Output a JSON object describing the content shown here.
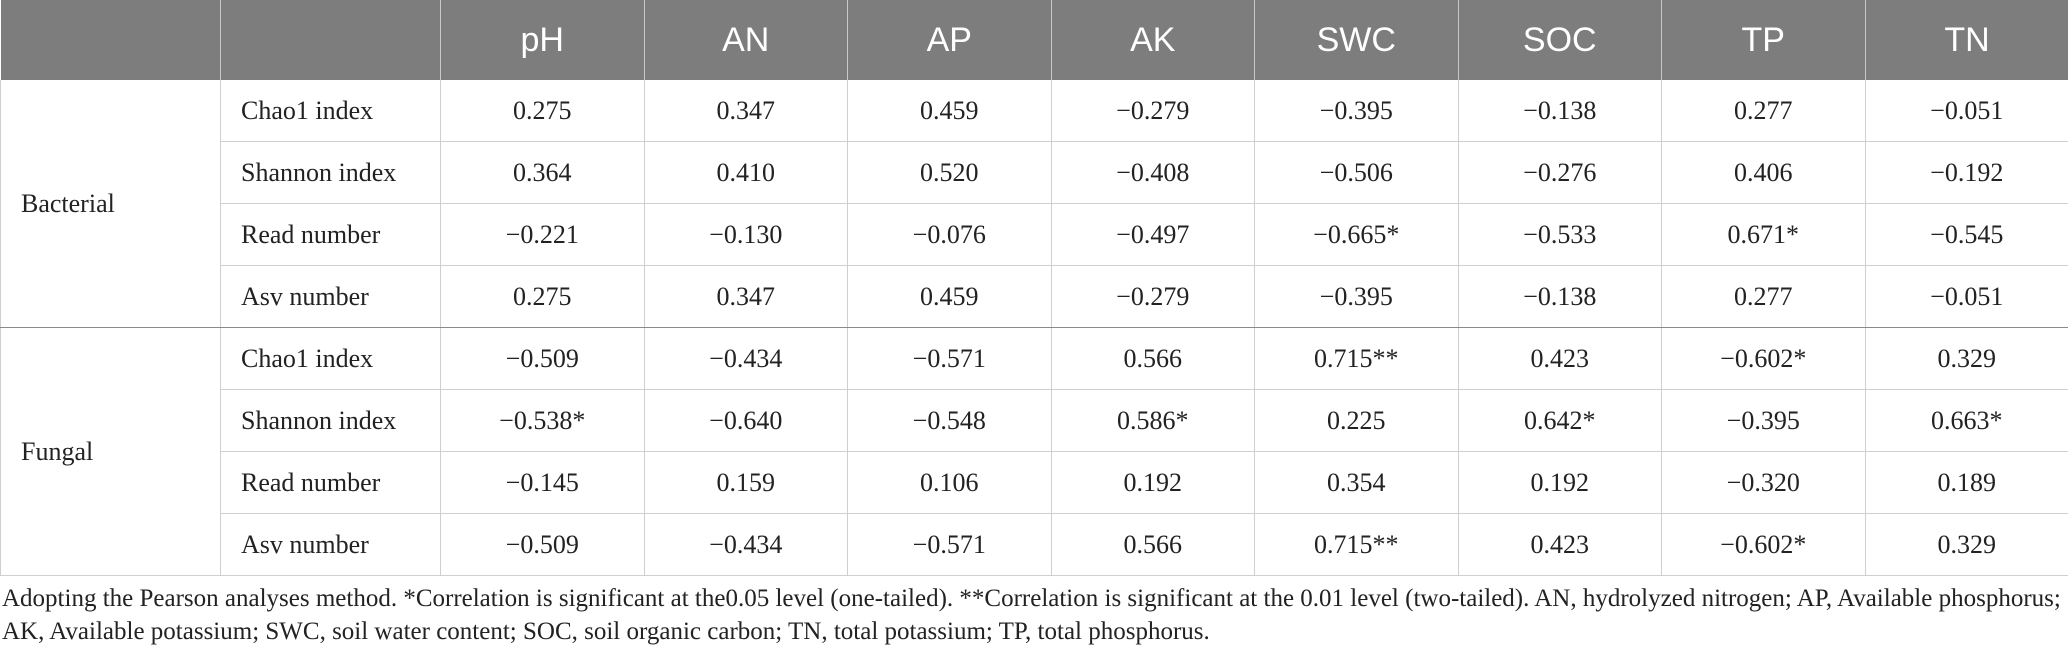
{
  "table": {
    "header_blank_1": "",
    "header_blank_2": "",
    "columns": [
      "pH",
      "AN",
      "AP",
      "AK",
      "SWC",
      "SOC",
      "TP",
      "TN"
    ],
    "groups": [
      {
        "label": "Bacterial",
        "rows": [
          {
            "metric": "Chao1 index",
            "values": [
              "0.275",
              "0.347",
              "0.459",
              "−0.279",
              "−0.395",
              "−0.138",
              "0.277",
              "−0.051"
            ]
          },
          {
            "metric": "Shannon index",
            "values": [
              "0.364",
              "0.410",
              "0.520",
              "−0.408",
              "−0.506",
              "−0.276",
              "0.406",
              "−0.192"
            ]
          },
          {
            "metric": "Read number",
            "values": [
              "−0.221",
              "−0.130",
              "−0.076",
              "−0.497",
              "−0.665*",
              "−0.533",
              "0.671*",
              "−0.545"
            ]
          },
          {
            "metric": "Asv number",
            "values": [
              "0.275",
              "0.347",
              "0.459",
              "−0.279",
              "−0.395",
              "−0.138",
              "0.277",
              "−0.051"
            ]
          }
        ]
      },
      {
        "label": "Fungal",
        "rows": [
          {
            "metric": "Chao1 index",
            "values": [
              "−0.509",
              "−0.434",
              "−0.571",
              "0.566",
              "0.715**",
              "0.423",
              "−0.602*",
              "0.329"
            ]
          },
          {
            "metric": "Shannon index",
            "values": [
              "−0.538*",
              "−0.640",
              "−0.548",
              "0.586*",
              "0.225",
              "0.642*",
              "−0.395",
              "0.663*"
            ]
          },
          {
            "metric": "Read number",
            "values": [
              "−0.145",
              "0.159",
              "0.106",
              "0.192",
              "0.354",
              "0.192",
              "−0.320",
              "0.189"
            ]
          },
          {
            "metric": "Asv number",
            "values": [
              "−0.509",
              "−0.434",
              "−0.571",
              "0.566",
              "0.715**",
              "0.423",
              "−0.602*",
              "0.329"
            ]
          }
        ]
      }
    ]
  },
  "footnote": "Adopting the Pearson analyses method. *Correlation is significant at the0.05 level (one-tailed). **Correlation is significant at the 0.01 level (two-tailed). AN, hydrolyzed nitrogen; AP, Available phosphorus; AK, Available potassium; SWC, soil water content; SOC, soil organic carbon; TN, total potassium; TP, total phosphorus.",
  "colors": {
    "header_background": "#7d7d7d",
    "header_text": "#ffffff",
    "grid_line": "#cfcfcf",
    "text": "#222222"
  }
}
